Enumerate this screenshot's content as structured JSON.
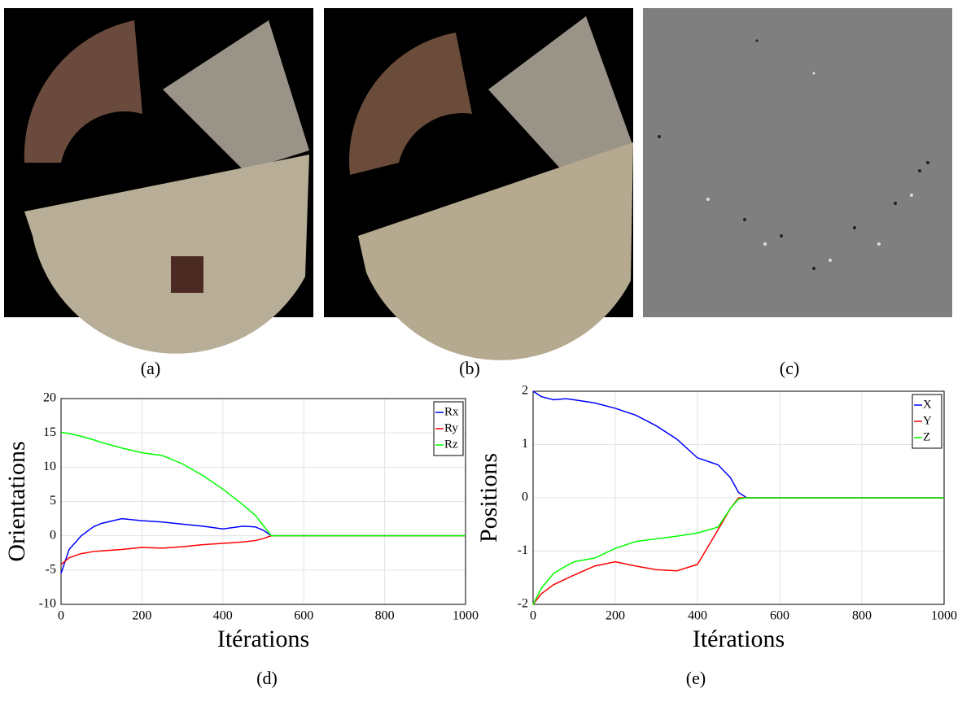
{
  "captions": [
    "(a)",
    "(b)",
    "(c)",
    "(d)",
    "(e)"
  ],
  "chart_data": [
    {
      "type": "line",
      "xlabel": "Itérations",
      "ylabel": "Orientations",
      "x": [
        0,
        20,
        50,
        80,
        100,
        150,
        200,
        250,
        300,
        350,
        400,
        450,
        480,
        500,
        520,
        600,
        800,
        1000
      ],
      "series": [
        {
          "name": "Rx",
          "color": "#0000ff",
          "values": [
            -5.5,
            -2,
            0,
            1.3,
            1.8,
            2.5,
            2.2,
            2,
            1.7,
            1.4,
            1.0,
            1.4,
            1.3,
            0.8,
            0,
            0,
            0,
            0
          ]
        },
        {
          "name": "Ry",
          "color": "#ff0000",
          "values": [
            -4.2,
            -3.2,
            -2.6,
            -2.3,
            -2.2,
            -2,
            -1.7,
            -1.8,
            -1.6,
            -1.3,
            -1.1,
            -0.9,
            -0.7,
            -0.4,
            0,
            0,
            0,
            0
          ]
        },
        {
          "name": "Rz",
          "color": "#00ff00",
          "values": [
            15.1,
            14.9,
            14.5,
            14,
            13.6,
            12.8,
            12.1,
            11.7,
            10.5,
            8.8,
            6.8,
            4.5,
            3,
            1.5,
            0,
            0,
            0,
            0
          ]
        }
      ],
      "xlim": [
        0,
        1000
      ],
      "xticks": [
        0,
        200,
        400,
        600,
        800,
        1000
      ],
      "ylim": [
        -10,
        20
      ],
      "yticks": [
        -10,
        -5,
        0,
        5,
        10,
        15,
        20
      ],
      "grid": true,
      "legend": "top-right"
    },
    {
      "type": "line",
      "xlabel": "Itérations",
      "ylabel": "Positions",
      "x": [
        0,
        20,
        50,
        80,
        100,
        150,
        200,
        250,
        300,
        350,
        400,
        450,
        480,
        500,
        520,
        600,
        800,
        1000
      ],
      "series": [
        {
          "name": "X",
          "color": "#0000ff",
          "values": [
            2,
            1.9,
            1.84,
            1.86,
            1.84,
            1.78,
            1.68,
            1.55,
            1.35,
            1.1,
            0.75,
            0.62,
            0.38,
            0.1,
            0,
            0,
            0,
            0
          ]
        },
        {
          "name": "Y",
          "color": "#ff0000",
          "values": [
            -2,
            -1.8,
            -1.63,
            -1.52,
            -1.45,
            -1.28,
            -1.2,
            -1.28,
            -1.35,
            -1.37,
            -1.25,
            -0.6,
            -0.2,
            0,
            0,
            0,
            0,
            0
          ]
        },
        {
          "name": "Z",
          "color": "#00ff00",
          "values": [
            -2,
            -1.7,
            -1.42,
            -1.28,
            -1.2,
            -1.13,
            -0.95,
            -0.82,
            -0.77,
            -0.72,
            -0.66,
            -0.55,
            -0.2,
            -0.02,
            0,
            0,
            0,
            0
          ]
        }
      ],
      "xlim": [
        0,
        1000
      ],
      "xticks": [
        0,
        200,
        400,
        600,
        800,
        1000
      ],
      "ylim": [
        -2,
        2
      ],
      "yticks": [
        -2,
        -1,
        0,
        1,
        2
      ],
      "grid": true,
      "legend": "top-right"
    }
  ]
}
